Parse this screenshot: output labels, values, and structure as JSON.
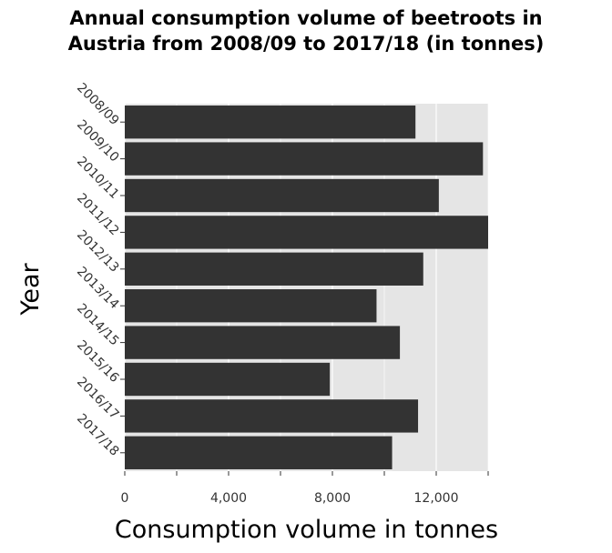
{
  "chart_data": {
    "type": "bar",
    "orientation": "horizontal",
    "title_line1": "Annual consumption volume of beetroots in",
    "title_line2": "Austria from 2008/09 to 2017/18 (in tonnes)",
    "xlabel": "Consumption volume in tonnes",
    "ylabel": "Year",
    "categories": [
      "2008/09",
      "2009/10",
      "2010/11",
      "2011/12",
      "2012/13",
      "2013/14",
      "2014/15",
      "2015/16",
      "2016/17",
      "2017/18"
    ],
    "values": [
      11200,
      13800,
      12100,
      14000,
      11500,
      9700,
      10600,
      7900,
      11300,
      10300
    ],
    "xlim": [
      0,
      14000
    ],
    "xticks": [
      0,
      4000,
      8000,
      12000
    ],
    "xtick_labels": [
      "0",
      "4,000",
      "8,000",
      "12,000"
    ],
    "grid": true,
    "colors": {
      "bar": "#333333",
      "plot_background": "#e5e5e5",
      "grid": "#ffffff"
    }
  }
}
